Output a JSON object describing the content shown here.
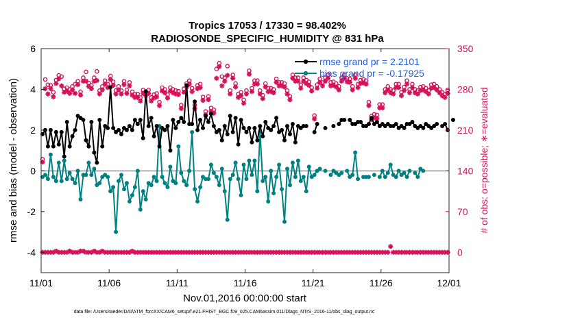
{
  "chart_data": {
    "type": "line",
    "title_line1": "Tropics 17053 / 17330 = 98.402%",
    "title_line2": "RADIOSONDE_SPECIFIC_HUMIDITY @ 831 hPa",
    "xlabel": "Nov.01,2016 00:00:00 start",
    "ylabel_left": "rmse and bias (model - observation)",
    "ylabel_right": "# of obs: o=possible; ∗=evaluated",
    "footer": "data file: /Users/raeder/DAI/ATM_forcXX/CAM6_setup/f.e21.FHIST_BGC.f09_025.CAM6assim.011/Diags_NTrS_2016-11/obs_diag_output.nc",
    "xlim": [
      0,
      30
    ],
    "ylim_left": [
      -5,
      6
    ],
    "ylim_right": [
      -35,
      350
    ],
    "x_ticks": [
      0,
      5,
      10,
      15,
      20,
      25,
      30
    ],
    "x_tick_labels": [
      "11/01",
      "11/06",
      "11/11",
      "11/16",
      "11/21",
      "11/26",
      "12/01"
    ],
    "y_left_ticks": [
      -4,
      -2,
      0,
      2,
      4,
      6
    ],
    "y_left_tick_labels": [
      "-4",
      "-2",
      "0",
      "2",
      "4",
      "6"
    ],
    "y_right_ticks": [
      0,
      70,
      140,
      210,
      280,
      350
    ],
    "y_right_tick_labels": [
      "0",
      "70",
      "140",
      "210",
      "280",
      "350"
    ],
    "colors": {
      "rmse": "#000000",
      "bias": "#008080",
      "obs": "#d6135a",
      "zero_line": "#b0b0b0",
      "legend_text": "#1f5fe6"
    },
    "series": [
      {
        "name": "rmse grand pr = 2.2101",
        "axis": "left",
        "values": [
          1.8,
          2.0,
          1.2,
          2.0,
          1.2,
          1.9,
          1.3,
          1.9,
          0.7,
          2.4,
          1.2,
          1.7,
          2.0,
          2.7,
          2.6,
          2.5,
          1.5,
          1.2,
          2.4,
          0.9,
          0.4,
          2.5,
          1.2,
          2.2,
          2.1,
          4.1,
          2.1,
          1.9,
          2.0,
          1.8,
          2.1,
          2.0,
          2.2,
          2.0,
          2.5,
          2.3,
          2.5,
          1.6,
          3.9,
          2.2,
          2.6,
          1.7,
          2.2,
          1.2,
          2.1,
          2.0,
          2.2,
          1.0,
          2.5,
          2.1,
          2.4,
          2.6,
          2.4,
          4.2,
          2.3,
          2.3,
          3.4,
          2.0,
          2.5,
          2.1,
          2.7,
          2.4,
          2.8,
          2.2,
          1.9,
          2.0,
          1.5,
          2.2,
          1.8,
          2.7,
          1.9,
          2.6,
          1.3,
          2.5,
          2.1,
          1.9,
          2.1,
          1.4,
          2.1,
          1.5,
          2.2,
          1.7,
          2.4,
          2.1,
          2.0,
          2.2,
          2.6,
          1.9,
          2.0,
          1.5,
          2.2,
          1.8,
          2.3,
          1.4,
          2.2,
          2.1,
          2.2,
          2.2,
          null,
          null,
          1.9,
          2.3,
          null,
          null,
          2.1,
          null,
          null,
          2.2,
          null,
          2.3,
          2.5,
          2.5,
          null,
          2.5,
          2.3,
          2.3,
          2.4,
          2.4,
          2.2,
          2.2,
          2.3,
          2.6,
          2.3,
          2.4,
          2.2,
          2.3,
          2.2,
          2.3,
          2.2,
          2.2,
          2.3,
          2.1,
          2.2,
          2.1,
          2.3,
          2.3,
          2.4,
          2.2,
          2.1,
          2.2,
          2.1,
          2.3,
          2.2,
          2.1,
          2.2,
          2.3,
          null,
          2.2,
          2.3,
          2.0,
          null,
          2.5
        ]
      },
      {
        "name": "bias grand pr = -0.17925",
        "axis": "left",
        "values": [
          -0.3,
          -0.2,
          -0.4,
          0.8,
          -0.3,
          -0.5,
          0.4,
          -0.5,
          0.5,
          -0.4,
          -0.1,
          -0.4,
          -0.6,
          0.0,
          -1.4,
          -0.2,
          -0.2,
          0.4,
          -0.2,
          0.1,
          -0.7,
          -0.6,
          -0.3,
          -0.2,
          -0.3,
          -1.0,
          -0.8,
          -3.0,
          -0.5,
          -0.2,
          -0.9,
          -0.6,
          -1.5,
          -1.2,
          -0.8,
          0.0,
          -1.9,
          -1.0,
          -1.4,
          -0.6,
          -0.7,
          -0.3,
          -0.5,
          2.2,
          -0.3,
          -0.6,
          -0.8,
          0.2,
          -0.5,
          -0.6,
          1.2,
          -0.1,
          -0.5,
          -0.7,
          0.0,
          1.9,
          -0.9,
          -1.5,
          -0.8,
          -0.3,
          -0.4,
          -0.4,
          0.3,
          -0.1,
          -0.3,
          -0.7,
          0.1,
          -1.0,
          -2.4,
          -0.4,
          -0.2,
          0.4,
          -0.4,
          -1.2,
          0.3,
          -0.4,
          0.5,
          -0.2,
          0.5,
          -1.0,
          1.9,
          -0.5,
          -0.3,
          -1.5,
          0.0,
          -1.1,
          -0.3,
          0.3,
          -0.9,
          -2.5,
          0.1,
          -0.7,
          0.4,
          -0.3,
          0.5,
          -0.5,
          -0.3,
          -1.0,
          0.2,
          -0.3,
          -0.2,
          0.0,
          0.1,
          null,
          0.0,
          null,
          -0.2,
          0.0,
          -0.1,
          -0.2,
          -0.1,
          null,
          0.0,
          -0.3,
          -0.2,
          0.9,
          -0.4,
          null,
          -0.3,
          -0.3,
          -0.3,
          null,
          -0.2,
          null,
          -0.3,
          0.0,
          -0.3,
          -0.1,
          0.3,
          -0.2,
          -0.3,
          0.0,
          -0.2,
          -0.1,
          -0.3,
          0.0,
          null,
          -0.1,
          -0.3,
          0.1,
          0.0
        ]
      },
      {
        "name": "obs possible",
        "axis": "right",
        "values": [
          160,
          297,
          288,
          287,
          275,
          296,
          304,
          302,
          281,
          283,
          280,
          285,
          289,
          294,
          276,
          300,
          310,
          291,
          287,
          300,
          311,
          278,
          285,
          295,
          289,
          303,
          293,
          278,
          285,
          278,
          294,
          279,
          292,
          276,
          272,
          272,
          266,
          279,
          275,
          279,
          266,
          271,
          273,
          258,
          283,
          280,
          271,
          283,
          280,
          278,
          277,
          253,
          281,
          290,
          295,
          282,
          253,
          287,
          289,
          267,
          242,
          268,
          248,
          245,
          315,
          325,
          302,
          300,
          320,
          278,
          305,
          290,
          272,
          275,
          262,
          278,
          312,
          282,
          295,
          295,
          278,
          270,
          290,
          282,
          282,
          280,
          298,
          292,
          292,
          290,
          278,
          268,
          305,
          300,
          300,
          288,
          300,
          296,
          293,
          283,
          235,
          288,
          298,
          292,
          300,
          305,
          292,
          293,
          290,
          285,
          300,
          305,
          299,
          298,
          285,
          305,
          289,
          296,
          297,
          295,
          258,
          234,
          237,
          236,
          254,
          254,
          280,
          285,
          280,
          278,
          289,
          289,
          275,
          284,
          295,
          280,
          289,
          280,
          278,
          284,
          285,
          282,
          278,
          288,
          289,
          285,
          280,
          275,
          272,
          279
        ]
      },
      {
        "name": "obs evaluated",
        "axis": "right",
        "values": [
          161,
          287,
          278,
          287,
          273,
          296,
          304,
          292,
          281,
          283,
          279,
          285,
          279,
          294,
          276,
          300,
          300,
          291,
          287,
          300,
          301,
          278,
          285,
          295,
          289,
          303,
          293,
          278,
          285,
          278,
          294,
          279,
          292,
          276,
          272,
          272,
          266,
          279,
          275,
          279,
          266,
          271,
          273,
          258,
          283,
          280,
          271,
          283,
          280,
          278,
          277,
          253,
          281,
          290,
          295,
          282,
          253,
          287,
          289,
          267,
          242,
          268,
          248,
          245,
          305,
          325,
          292,
          300,
          310,
          278,
          305,
          290,
          272,
          275,
          262,
          278,
          312,
          282,
          295,
          295,
          278,
          270,
          290,
          282,
          282,
          280,
          298,
          292,
          292,
          290,
          278,
          268,
          305,
          300,
          300,
          288,
          300,
          296,
          293,
          283,
          235,
          288,
          298,
          292,
          300,
          305,
          292,
          293,
          290,
          285,
          300,
          305,
          299,
          298,
          285,
          305,
          289,
          296,
          297,
          295,
          258,
          234,
          237,
          236,
          254,
          254,
          280,
          285,
          280,
          278,
          289,
          289,
          275,
          284,
          295,
          280,
          289,
          280,
          278,
          284,
          285,
          282,
          278,
          288,
          289,
          285,
          280,
          275,
          272,
          279
        ]
      },
      {
        "name": "obs bottom possible",
        "axis": "right",
        "values": [
          0,
          0,
          0,
          0,
          0,
          2,
          0,
          0,
          0,
          0,
          2,
          0,
          0,
          0,
          2,
          2,
          0,
          0,
          0,
          2,
          0,
          0,
          2,
          0,
          0,
          0,
          0,
          0,
          0,
          0,
          0,
          0,
          0,
          2,
          0,
          0,
          0,
          0,
          0,
          0,
          0,
          0,
          0,
          0,
          0,
          0,
          0,
          0,
          0,
          0,
          0,
          0,
          0,
          0,
          0,
          0,
          0,
          0,
          0,
          0,
          0,
          0,
          0,
          0,
          0,
          0,
          0,
          0,
          0,
          0,
          0,
          0,
          0,
          0,
          0,
          0,
          0,
          0,
          0,
          0,
          0,
          0,
          0,
          0,
          0,
          0,
          0,
          0,
          0,
          0,
          0,
          0,
          0,
          0,
          0,
          0,
          0,
          0,
          0,
          0,
          0,
          0,
          0,
          0,
          0,
          0,
          0,
          0,
          0,
          0,
          0,
          0,
          0,
          0,
          0,
          0,
          0,
          0,
          0,
          0,
          0,
          0,
          0,
          0,
          0,
          0,
          0,
          0,
          10,
          0,
          0,
          0,
          0,
          0,
          0,
          0,
          0,
          0,
          0,
          0,
          0,
          0,
          0,
          0,
          0,
          0,
          0,
          0,
          0,
          0
        ]
      }
    ],
    "legend": [
      "rmse grand pr = 2.2101",
      "bias grand pr = -0.17925"
    ]
  }
}
